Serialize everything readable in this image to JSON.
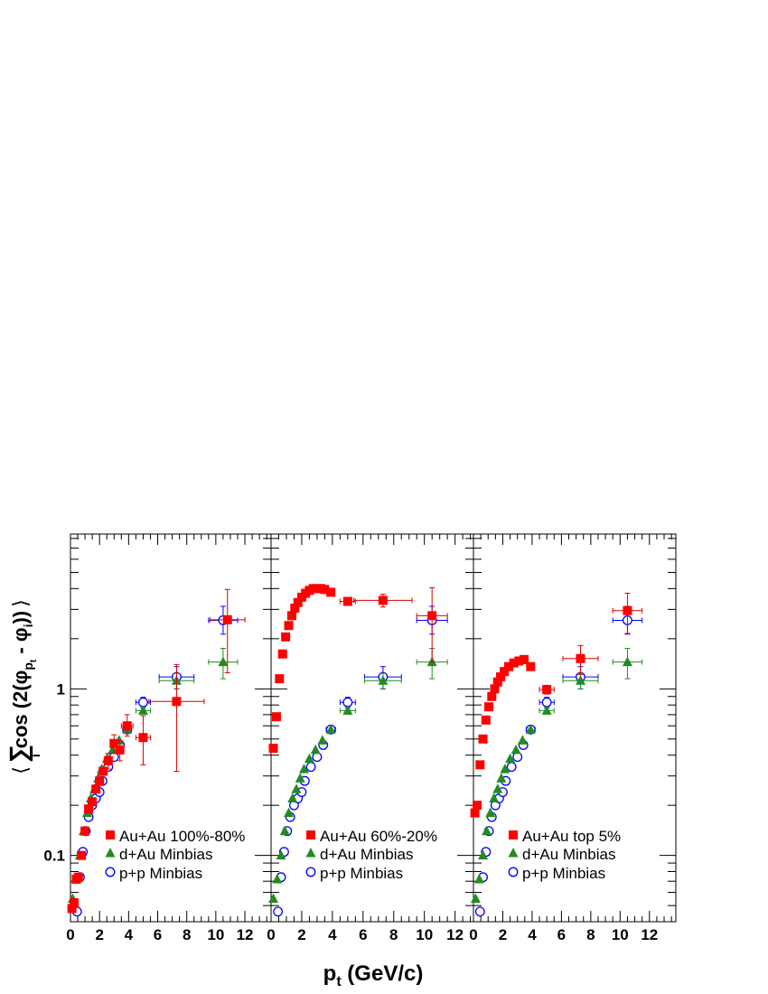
{
  "figure": {
    "xlabel": "p",
    "xlabel_sub": "t",
    "xlabel_unit": " (GeV/c)",
    "ylabel_open": "⟨",
    "ylabel_sum": "∑",
    "ylabel_sum_index": "i",
    "ylabel_text": "cos (2(φ",
    "ylabel_sub1": "p",
    "ylabel_subsub": "t",
    "ylabel_mid": " - φ",
    "ylabel_sub2": "i",
    "ylabel_end": "))",
    "ylabel_close": "⟩",
    "x_ticks": [
      "0",
      "2",
      "4",
      "6",
      "8",
      "10",
      "12"
    ],
    "y_ticks": [
      "0.1",
      "1"
    ]
  },
  "colors": {
    "auau": "#ff0000",
    "dau": "#228b22",
    "pp": "#0000ff",
    "errbar_auau": "#dd0000"
  },
  "chart_data": [
    {
      "type": "scatter",
      "panel": "left",
      "xlim": [
        0,
        13.8
      ],
      "ylim": [
        0.04,
        8.5
      ],
      "yscale": "log",
      "legend_placement": "bottom-right",
      "series": [
        {
          "name": "Au+Au 100%-80%",
          "marker": "filled-square",
          "x": [
            0.1,
            0.25,
            0.4,
            0.55,
            0.75,
            1.0,
            1.25,
            1.5,
            1.75,
            2.0,
            2.25,
            2.6,
            3.0,
            3.4,
            3.9,
            5.0,
            7.3,
            10.8
          ],
          "y": [
            0.048,
            0.052,
            0.072,
            0.074,
            0.1,
            0.14,
            0.19,
            0.21,
            0.25,
            0.28,
            0.32,
            0.37,
            0.47,
            0.43,
            0.6,
            0.51,
            0.84,
            2.6
          ],
          "xerr": [
            0,
            0,
            0,
            0,
            0,
            0,
            0,
            0,
            0,
            0,
            0,
            0.2,
            0.2,
            0.2,
            0.4,
            0.5,
            1.9,
            1.2
          ],
          "yerr_low": [
            0,
            0,
            0,
            0,
            0,
            0,
            0,
            0,
            0,
            0,
            0,
            0.04,
            0.06,
            0.06,
            0.08,
            0.16,
            0.52,
            1.35
          ],
          "yerr_high": [
            0,
            0,
            0,
            0,
            0,
            0,
            0,
            0,
            0,
            0,
            0,
            0.04,
            0.06,
            0.06,
            0.1,
            0.18,
            0.56,
            1.35
          ]
        },
        {
          "name": "d+Au Minbias",
          "marker": "filled-triangle",
          "x": [
            0.15,
            0.4,
            0.65,
            0.9,
            1.15,
            1.4,
            1.65,
            1.9,
            2.15,
            2.5,
            2.9,
            3.35,
            3.9,
            5.0,
            7.3,
            10.5
          ],
          "y": [
            0.055,
            0.072,
            0.1,
            0.14,
            0.18,
            0.22,
            0.25,
            0.29,
            0.33,
            0.38,
            0.43,
            0.49,
            0.57,
            0.74,
            1.12,
            1.45
          ],
          "xerr": [
            0,
            0,
            0,
            0,
            0,
            0,
            0,
            0,
            0,
            0,
            0,
            0,
            0,
            0.5,
            1.2,
            1.0
          ],
          "yerr_low": [
            0,
            0,
            0,
            0,
            0,
            0,
            0,
            0,
            0,
            0,
            0,
            0,
            0,
            0.03,
            0.12,
            0.3
          ],
          "yerr_high": [
            0,
            0,
            0,
            0,
            0,
            0,
            0,
            0,
            0,
            0,
            0,
            0,
            0,
            0.03,
            0.12,
            0.3
          ]
        },
        {
          "name": "p+p Minbias",
          "marker": "open-circle",
          "x": [
            0.45,
            0.65,
            0.85,
            1.05,
            1.25,
            1.5,
            1.75,
            2.0,
            2.2,
            2.6,
            3.0,
            3.4,
            3.9,
            5.0,
            7.3,
            10.5
          ],
          "y": [
            0.046,
            0.074,
            0.105,
            0.14,
            0.17,
            0.2,
            0.22,
            0.24,
            0.28,
            0.34,
            0.39,
            0.46,
            0.57,
            0.83,
            1.18,
            2.58
          ],
          "xerr": [
            0,
            0,
            0,
            0,
            0,
            0,
            0,
            0,
            0,
            0,
            0,
            0,
            0.3,
            0.5,
            1.2,
            1.0
          ],
          "yerr_low": [
            0,
            0,
            0,
            0,
            0,
            0,
            0,
            0,
            0,
            0,
            0,
            0,
            0.03,
            0.06,
            0.18,
            0.45
          ],
          "yerr_high": [
            0,
            0,
            0,
            0,
            0,
            0,
            0,
            0,
            0,
            0,
            0,
            0,
            0.03,
            0.06,
            0.18,
            0.55
          ]
        }
      ]
    },
    {
      "type": "scatter",
      "panel": "middle",
      "xlim": [
        0,
        13.2
      ],
      "ylim": [
        0.04,
        8.5
      ],
      "yscale": "log",
      "legend_placement": "bottom-right",
      "series": [
        {
          "name": "Au+Au 60%-20%",
          "marker": "filled-square",
          "x": [
            0.15,
            0.35,
            0.55,
            0.75,
            0.95,
            1.15,
            1.35,
            1.55,
            1.75,
            2.0,
            2.25,
            2.5,
            2.75,
            3.0,
            3.25,
            3.5,
            3.9,
            5.0,
            7.3,
            10.5
          ],
          "y": [
            0.44,
            0.68,
            1.15,
            1.62,
            2.05,
            2.4,
            2.75,
            3.05,
            3.3,
            3.55,
            3.75,
            3.9,
            4.0,
            4.0,
            4.0,
            3.95,
            3.8,
            3.35,
            3.4,
            2.75
          ],
          "xerr": [
            0,
            0,
            0,
            0,
            0,
            0,
            0,
            0,
            0,
            0,
            0,
            0,
            0,
            0,
            0,
            0,
            0,
            0.5,
            1.9,
            1.0
          ],
          "yerr_low": [
            0,
            0,
            0,
            0,
            0,
            0,
            0,
            0,
            0,
            0,
            0,
            0,
            0,
            0,
            0,
            0,
            0,
            0.1,
            0.3,
            1.3
          ],
          "yerr_high": [
            0,
            0,
            0,
            0,
            0,
            0,
            0,
            0,
            0,
            0,
            0,
            0,
            0,
            0,
            0,
            0,
            0,
            0.1,
            0.3,
            1.3
          ]
        },
        {
          "name": "d+Au Minbias",
          "marker": "filled-triangle",
          "x": [
            0.15,
            0.4,
            0.65,
            0.9,
            1.15,
            1.4,
            1.65,
            1.9,
            2.15,
            2.5,
            2.9,
            3.35,
            3.9,
            5.0,
            7.3,
            10.5
          ],
          "y": [
            0.055,
            0.072,
            0.1,
            0.14,
            0.18,
            0.22,
            0.25,
            0.29,
            0.33,
            0.38,
            0.43,
            0.49,
            0.57,
            0.74,
            1.12,
            1.45
          ],
          "xerr": [
            0,
            0,
            0,
            0,
            0,
            0,
            0,
            0,
            0,
            0,
            0,
            0,
            0,
            0.5,
            1.2,
            1.0
          ],
          "yerr_low": [
            0,
            0,
            0,
            0,
            0,
            0,
            0,
            0,
            0,
            0,
            0,
            0,
            0,
            0.03,
            0.12,
            0.3
          ],
          "yerr_high": [
            0,
            0,
            0,
            0,
            0,
            0,
            0,
            0,
            0,
            0,
            0,
            0,
            0,
            0.03,
            0.12,
            0.3
          ]
        },
        {
          "name": "p+p Minbias",
          "marker": "open-circle",
          "x": [
            0.45,
            0.65,
            0.85,
            1.05,
            1.25,
            1.5,
            1.75,
            2.0,
            2.2,
            2.6,
            3.0,
            3.4,
            3.9,
            5.0,
            7.3,
            10.5
          ],
          "y": [
            0.046,
            0.074,
            0.105,
            0.14,
            0.17,
            0.2,
            0.22,
            0.24,
            0.28,
            0.34,
            0.39,
            0.46,
            0.57,
            0.83,
            1.18,
            2.58
          ],
          "xerr": [
            0,
            0,
            0,
            0,
            0,
            0,
            0,
            0,
            0,
            0,
            0,
            0,
            0.3,
            0.5,
            1.2,
            1.0
          ],
          "yerr_low": [
            0,
            0,
            0,
            0,
            0,
            0,
            0,
            0,
            0,
            0,
            0,
            0,
            0.03,
            0.06,
            0.18,
            0.45
          ],
          "yerr_high": [
            0,
            0,
            0,
            0,
            0,
            0,
            0,
            0,
            0,
            0,
            0,
            0,
            0.03,
            0.06,
            0.18,
            0.55
          ]
        }
      ]
    },
    {
      "type": "scatter",
      "panel": "right",
      "xlim": [
        0,
        13.8
      ],
      "ylim": [
        0.04,
        8.5
      ],
      "yscale": "log",
      "legend_placement": "bottom-right",
      "series": [
        {
          "name": "Au+Au top 5%",
          "marker": "filled-square",
          "x": [
            0.1,
            0.25,
            0.45,
            0.65,
            0.85,
            1.05,
            1.25,
            1.45,
            1.65,
            1.85,
            2.1,
            2.4,
            2.75,
            3.1,
            3.45,
            3.9,
            5.0,
            7.3,
            10.5
          ],
          "y": [
            0.18,
            0.2,
            0.35,
            0.5,
            0.65,
            0.78,
            0.9,
            1.0,
            1.1,
            1.18,
            1.27,
            1.36,
            1.43,
            1.47,
            1.5,
            1.36,
            0.99,
            1.52,
            2.95
          ],
          "xerr": [
            0,
            0,
            0,
            0,
            0,
            0,
            0,
            0,
            0,
            0,
            0,
            0,
            0,
            0,
            0,
            0,
            0.5,
            1.2,
            1.0
          ],
          "yerr_low": [
            0,
            0,
            0,
            0,
            0,
            0,
            0,
            0,
            0,
            0,
            0,
            0,
            0,
            0,
            0,
            0,
            0.06,
            0.3,
            0.8
          ],
          "yerr_high": [
            0,
            0,
            0,
            0,
            0,
            0,
            0,
            0,
            0,
            0,
            0,
            0,
            0,
            0,
            0,
            0,
            0.06,
            0.3,
            0.8
          ]
        },
        {
          "name": "d+Au Minbias",
          "marker": "filled-triangle",
          "x": [
            0.15,
            0.4,
            0.65,
            0.9,
            1.15,
            1.4,
            1.65,
            1.9,
            2.15,
            2.5,
            2.9,
            3.35,
            3.9,
            5.0,
            7.3,
            10.5
          ],
          "y": [
            0.055,
            0.072,
            0.1,
            0.14,
            0.18,
            0.22,
            0.25,
            0.29,
            0.33,
            0.38,
            0.43,
            0.49,
            0.57,
            0.74,
            1.12,
            1.45
          ],
          "xerr": [
            0,
            0,
            0,
            0,
            0,
            0,
            0,
            0,
            0,
            0,
            0,
            0,
            0,
            0.5,
            1.2,
            1.0
          ],
          "yerr_low": [
            0,
            0,
            0,
            0,
            0,
            0,
            0,
            0,
            0,
            0,
            0,
            0,
            0,
            0.03,
            0.12,
            0.3
          ],
          "yerr_high": [
            0,
            0,
            0,
            0,
            0,
            0,
            0,
            0,
            0,
            0,
            0,
            0,
            0,
            0.03,
            0.12,
            0.3
          ]
        },
        {
          "name": "p+p Minbias",
          "marker": "open-circle",
          "x": [
            0.45,
            0.65,
            0.85,
            1.05,
            1.25,
            1.5,
            1.75,
            2.0,
            2.2,
            2.6,
            3.0,
            3.4,
            3.9,
            5.0,
            7.3,
            10.5
          ],
          "y": [
            0.046,
            0.074,
            0.105,
            0.14,
            0.17,
            0.2,
            0.22,
            0.24,
            0.28,
            0.34,
            0.39,
            0.46,
            0.57,
            0.83,
            1.18,
            2.58
          ],
          "xerr": [
            0,
            0,
            0,
            0,
            0,
            0,
            0,
            0,
            0,
            0,
            0,
            0,
            0.3,
            0.5,
            1.2,
            1.0
          ],
          "yerr_low": [
            0,
            0,
            0,
            0,
            0,
            0,
            0,
            0,
            0,
            0,
            0,
            0,
            0.03,
            0.06,
            0.18,
            0.45
          ],
          "yerr_high": [
            0,
            0,
            0,
            0,
            0,
            0,
            0,
            0,
            0,
            0,
            0,
            0,
            0.03,
            0.06,
            0.18,
            0.55
          ]
        }
      ]
    }
  ]
}
